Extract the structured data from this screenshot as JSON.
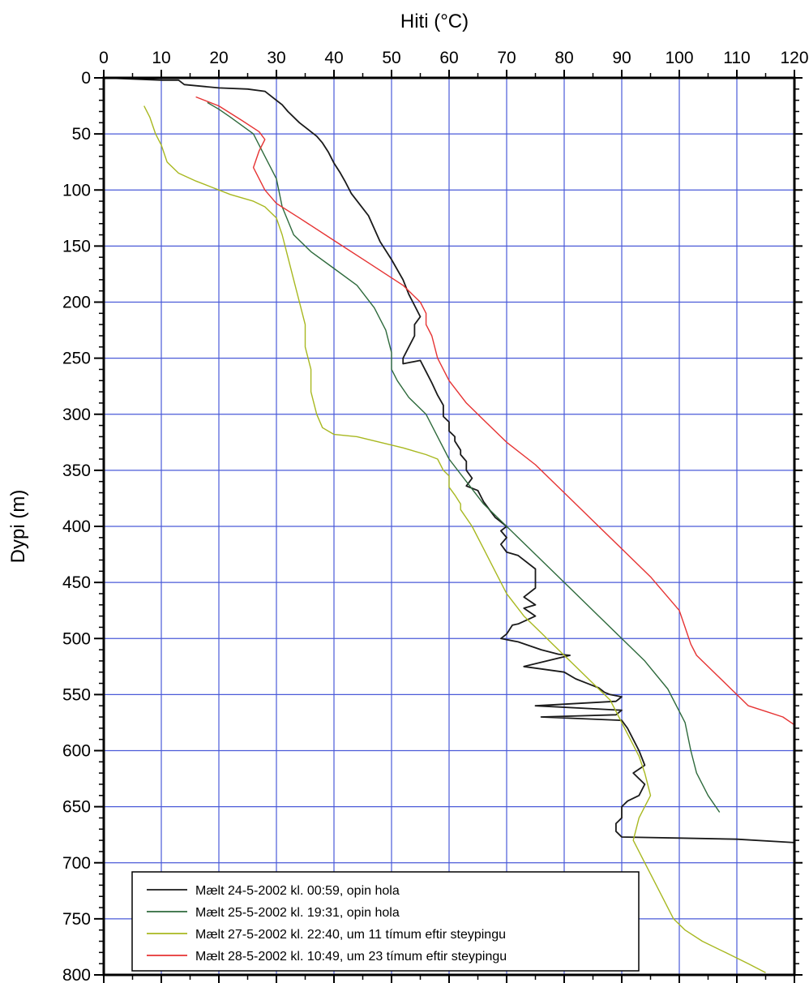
{
  "chart_data": {
    "type": "line",
    "xlabel": "Hiti (°C)",
    "ylabel": "Dypi (m)",
    "xlim": [
      0,
      120
    ],
    "ylim": [
      0,
      800
    ],
    "y_inverted": true,
    "x_axis_position": "top",
    "grid": true,
    "grid_color": "#4a5ad8",
    "legend_position": "bottom-left",
    "x_ticks": [
      "0",
      "10",
      "20",
      "30",
      "40",
      "50",
      "60",
      "70",
      "80",
      "90",
      "100",
      "110",
      "120"
    ],
    "y_ticks": [
      "0",
      "50",
      "100",
      "150",
      "200",
      "250",
      "300",
      "350",
      "400",
      "450",
      "500",
      "550",
      "600",
      "650",
      "700",
      "750",
      "800"
    ],
    "series": [
      {
        "name": "Mælt 24-5-2002 kl. 00:59, opin hola",
        "color": "#1a1a1a",
        "x": [
          0,
          10,
          13,
          14,
          20,
          25,
          28,
          30,
          31,
          32,
          34,
          36,
          37,
          38,
          39,
          40,
          41,
          42,
          43,
          46,
          48,
          50,
          52,
          53,
          54,
          55,
          54,
          54,
          53,
          52,
          52,
          55,
          56,
          57,
          58,
          59,
          59,
          60,
          60,
          61,
          61,
          62,
          62,
          63,
          63,
          64,
          63,
          65,
          66,
          67,
          68,
          70,
          69,
          70,
          69,
          70,
          72,
          75,
          75,
          73,
          75,
          73,
          75,
          72,
          71,
          70,
          69,
          72,
          76,
          79,
          81,
          77,
          73,
          80,
          82,
          84,
          86,
          87,
          88,
          89,
          90,
          89,
          75,
          90,
          89,
          76,
          90,
          91,
          92,
          93,
          94,
          92,
          94,
          93,
          91,
          90,
          90,
          89,
          89,
          90,
          100,
          110,
          120
        ],
        "y": [
          0,
          2,
          2,
          6,
          9,
          10,
          12,
          20,
          24,
          30,
          40,
          48,
          52,
          58,
          66,
          76,
          84,
          93,
          103,
          123,
          146,
          162,
          180,
          193,
          203,
          213,
          220,
          230,
          240,
          250,
          255,
          252,
          262,
          272,
          283,
          292,
          302,
          307,
          315,
          320,
          324,
          332,
          336,
          342,
          350,
          357,
          364,
          368,
          378,
          385,
          392,
          400,
          404,
          410,
          416,
          423,
          426,
          438,
          455,
          463,
          470,
          473,
          480,
          487,
          488,
          496,
          500,
          503,
          510,
          514,
          515,
          520,
          525,
          530,
          536,
          540,
          544,
          548,
          550,
          551,
          552,
          556,
          560,
          564,
          568,
          570,
          573,
          580,
          590,
          600,
          613,
          620,
          630,
          640,
          645,
          650,
          660,
          665,
          672,
          677,
          678,
          679,
          682
        ]
      },
      {
        "name": "Mælt 25-5-2002 kl. 19:31, opin hola",
        "color": "#2e6a3c",
        "x": [
          18,
          20,
          22,
          26,
          28,
          29,
          30,
          31,
          33,
          36,
          40,
          44,
          47,
          49,
          50,
          50,
          51,
          53,
          56,
          58,
          60,
          63,
          66,
          70,
          74,
          78,
          82,
          86,
          90,
          94,
          98,
          101,
          102,
          103,
          105,
          107
        ],
        "y": [
          22,
          28,
          35,
          50,
          70,
          80,
          90,
          115,
          140,
          155,
          170,
          185,
          205,
          225,
          245,
          260,
          270,
          285,
          300,
          320,
          340,
          360,
          380,
          400,
          420,
          440,
          460,
          480,
          500,
          520,
          545,
          575,
          600,
          620,
          640,
          655
        ]
      },
      {
        "name": "Mælt 27-5-2002 kl. 22:40, um 11 tímum eftir steypingu",
        "color": "#a8b820",
        "x": [
          7,
          8,
          9,
          10,
          11,
          13,
          16,
          19,
          22,
          26,
          28,
          30,
          31,
          32,
          33,
          34,
          35,
          35,
          36,
          36,
          37,
          38,
          40,
          44,
          48,
          52,
          56,
          58,
          59,
          60,
          60,
          61,
          62,
          62,
          64,
          66,
          68,
          70,
          73,
          76,
          78,
          80,
          82,
          84,
          86,
          88,
          89,
          90,
          91,
          92,
          93,
          94,
          95,
          94,
          93,
          92,
          93,
          94,
          95,
          97,
          99,
          101,
          104,
          108,
          112,
          115
        ],
        "y": [
          25,
          35,
          50,
          60,
          75,
          85,
          92,
          98,
          104,
          110,
          115,
          125,
          140,
          160,
          180,
          200,
          220,
          240,
          260,
          280,
          300,
          312,
          318,
          320,
          325,
          330,
          336,
          340,
          350,
          355,
          365,
          372,
          380,
          385,
          400,
          420,
          440,
          460,
          480,
          495,
          505,
          515,
          525,
          535,
          545,
          555,
          565,
          575,
          585,
          595,
          605,
          620,
          640,
          650,
          660,
          680,
          690,
          700,
          710,
          730,
          750,
          760,
          770,
          780,
          790,
          798
        ]
      },
      {
        "name": "Mælt 28-5-2002 kl. 10:49, um 23 tímum eftir steypingu",
        "color": "#e63333",
        "x": [
          16,
          20,
          24,
          27,
          28,
          27,
          26,
          27,
          28,
          30,
          34,
          40,
          46,
          52,
          55,
          56,
          56,
          57,
          58,
          60,
          63,
          66,
          68,
          70,
          75,
          80,
          85,
          90,
          95,
          100,
          101,
          102,
          103,
          106,
          109,
          111,
          112,
          115,
          118,
          120
        ],
        "y": [
          17,
          25,
          38,
          48,
          55,
          65,
          80,
          90,
          100,
          112,
          125,
          145,
          165,
          185,
          200,
          210,
          220,
          230,
          250,
          270,
          290,
          305,
          315,
          325,
          345,
          370,
          395,
          420,
          445,
          475,
          490,
          505,
          515,
          530,
          545,
          555,
          560,
          565,
          570,
          577
        ]
      }
    ]
  }
}
